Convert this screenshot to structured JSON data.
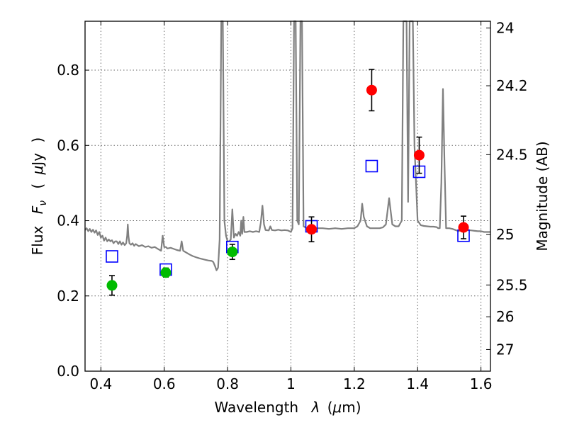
{
  "chart_data": {
    "type": "scatter",
    "xlabel_text": "Wavelength",
    "xlabel_symbol": "λ",
    "xlabel_unit_open": "(",
    "xlabel_unit_mu": "μ",
    "xlabel_unit_rest": "m)",
    "ylabel_text": "Flux",
    "ylabel_symbol": "F",
    "ylabel_sub": "ν",
    "ylabel_unit_open": "(",
    "ylabel_unit_mu": "μ",
    "ylabel_unit_rest": "Jy",
    "ylabel_unit_close": ")",
    "y2label": "Magnitude (AB)",
    "xlim": [
      0.35,
      1.63
    ],
    "ylim": [
      0.0,
      0.93
    ],
    "x_ticks": [
      {
        "value": 0.4,
        "label": "0.4"
      },
      {
        "value": 0.6,
        "label": "0.6"
      },
      {
        "value": 0.8,
        "label": "0.8"
      },
      {
        "value": 1.0,
        "label": "1"
      },
      {
        "value": 1.2,
        "label": "1.2"
      },
      {
        "value": 1.4,
        "label": "1.4"
      },
      {
        "value": 1.6,
        "label": "1.6"
      }
    ],
    "y_ticks": [
      {
        "value": 0.0,
        "label": "0.0"
      },
      {
        "value": 0.2,
        "label": "0.2"
      },
      {
        "value": 0.4,
        "label": "0.4"
      },
      {
        "value": 0.6,
        "label": "0.6"
      },
      {
        "value": 0.8,
        "label": "0.8"
      }
    ],
    "y2_ticks": [
      {
        "mag": 24,
        "label": "24"
      },
      {
        "mag": 24.2,
        "label": "24.2"
      },
      {
        "mag": 24.5,
        "label": "24.5"
      },
      {
        "mag": 25,
        "label": "25"
      },
      {
        "mag": 25.5,
        "label": "25.5"
      },
      {
        "mag": 26,
        "label": "26"
      },
      {
        "mag": 27,
        "label": "27"
      }
    ],
    "grid": true,
    "colors": {
      "template": "#808080",
      "model": "#0000ff",
      "optical": "#00bb00",
      "nir": "#ff0000",
      "errorbar": "#000000",
      "grid": "#666666"
    },
    "series": [
      {
        "name": "template-spectrum",
        "style": "line",
        "points": [
          [
            0.35,
            0.375
          ],
          [
            0.355,
            0.38
          ],
          [
            0.36,
            0.372
          ],
          [
            0.365,
            0.378
          ],
          [
            0.37,
            0.37
          ],
          [
            0.375,
            0.376
          ],
          [
            0.38,
            0.368
          ],
          [
            0.385,
            0.374
          ],
          [
            0.39,
            0.362
          ],
          [
            0.395,
            0.37
          ],
          [
            0.4,
            0.355
          ],
          [
            0.405,
            0.36
          ],
          [
            0.41,
            0.347
          ],
          [
            0.415,
            0.355
          ],
          [
            0.42,
            0.345
          ],
          [
            0.425,
            0.35
          ],
          [
            0.43,
            0.345
          ],
          [
            0.435,
            0.348
          ],
          [
            0.44,
            0.34
          ],
          [
            0.445,
            0.345
          ],
          [
            0.45,
            0.345
          ],
          [
            0.455,
            0.338
          ],
          [
            0.46,
            0.345
          ],
          [
            0.465,
            0.336
          ],
          [
            0.47,
            0.342
          ],
          [
            0.475,
            0.335
          ],
          [
            0.48,
            0.34
          ],
          [
            0.483,
            0.36
          ],
          [
            0.485,
            0.39
          ],
          [
            0.487,
            0.36
          ],
          [
            0.49,
            0.34
          ],
          [
            0.495,
            0.336
          ],
          [
            0.5,
            0.34
          ],
          [
            0.505,
            0.333
          ],
          [
            0.51,
            0.338
          ],
          [
            0.52,
            0.332
          ],
          [
            0.53,
            0.335
          ],
          [
            0.54,
            0.33
          ],
          [
            0.55,
            0.332
          ],
          [
            0.56,
            0.328
          ],
          [
            0.57,
            0.33
          ],
          [
            0.58,
            0.325
          ],
          [
            0.59,
            0.32
          ],
          [
            0.595,
            0.36
          ],
          [
            0.6,
            0.33
          ],
          [
            0.605,
            0.33
          ],
          [
            0.61,
            0.326
          ],
          [
            0.62,
            0.328
          ],
          [
            0.63,
            0.325
          ],
          [
            0.64,
            0.322
          ],
          [
            0.65,
            0.32
          ],
          [
            0.655,
            0.345
          ],
          [
            0.66,
            0.32
          ],
          [
            0.67,
            0.315
          ],
          [
            0.68,
            0.31
          ],
          [
            0.69,
            0.306
          ],
          [
            0.7,
            0.303
          ],
          [
            0.71,
            0.3
          ],
          [
            0.72,
            0.298
          ],
          [
            0.73,
            0.296
          ],
          [
            0.74,
            0.294
          ],
          [
            0.75,
            0.293
          ],
          [
            0.755,
            0.29
          ],
          [
            0.76,
            0.28
          ],
          [
            0.765,
            0.268
          ],
          [
            0.77,
            0.275
          ],
          [
            0.775,
            0.35
          ],
          [
            0.78,
            0.93
          ],
          [
            0.785,
            0.93
          ],
          [
            0.79,
            0.4
          ],
          [
            0.795,
            0.36
          ],
          [
            0.8,
            0.345
          ],
          [
            0.805,
            0.345
          ],
          [
            0.81,
            0.35
          ],
          [
            0.815,
            0.43
          ],
          [
            0.82,
            0.355
          ],
          [
            0.825,
            0.365
          ],
          [
            0.83,
            0.36
          ],
          [
            0.835,
            0.37
          ],
          [
            0.84,
            0.36
          ],
          [
            0.843,
            0.4
          ],
          [
            0.846,
            0.365
          ],
          [
            0.85,
            0.41
          ],
          [
            0.853,
            0.37
          ],
          [
            0.86,
            0.37
          ],
          [
            0.87,
            0.372
          ],
          [
            0.88,
            0.37
          ],
          [
            0.89,
            0.372
          ],
          [
            0.9,
            0.37
          ],
          [
            0.905,
            0.395
          ],
          [
            0.91,
            0.44
          ],
          [
            0.915,
            0.39
          ],
          [
            0.92,
            0.375
          ],
          [
            0.93,
            0.374
          ],
          [
            0.935,
            0.385
          ],
          [
            0.94,
            0.375
          ],
          [
            0.95,
            0.374
          ],
          [
            0.96,
            0.376
          ],
          [
            0.97,
            0.374
          ],
          [
            0.98,
            0.375
          ],
          [
            0.99,
            0.374
          ],
          [
            1.0,
            0.37
          ],
          [
            1.005,
            0.38
          ],
          [
            1.01,
            0.93
          ],
          [
            1.015,
            0.93
          ],
          [
            1.02,
            0.4
          ],
          [
            1.025,
            0.39
          ],
          [
            1.03,
            0.93
          ],
          [
            1.035,
            0.93
          ],
          [
            1.04,
            0.385
          ],
          [
            1.05,
            0.38
          ],
          [
            1.06,
            0.38
          ],
          [
            1.07,
            0.378
          ],
          [
            1.08,
            0.38
          ],
          [
            1.1,
            0.38
          ],
          [
            1.12,
            0.378
          ],
          [
            1.14,
            0.38
          ],
          [
            1.16,
            0.378
          ],
          [
            1.18,
            0.38
          ],
          [
            1.2,
            0.38
          ],
          [
            1.21,
            0.385
          ],
          [
            1.22,
            0.4
          ],
          [
            1.225,
            0.445
          ],
          [
            1.23,
            0.41
          ],
          [
            1.24,
            0.385
          ],
          [
            1.25,
            0.38
          ],
          [
            1.26,
            0.38
          ],
          [
            1.27,
            0.38
          ],
          [
            1.28,
            0.38
          ],
          [
            1.29,
            0.382
          ],
          [
            1.3,
            0.39
          ],
          [
            1.31,
            0.46
          ],
          [
            1.32,
            0.39
          ],
          [
            1.33,
            0.385
          ],
          [
            1.34,
            0.385
          ],
          [
            1.35,
            0.4
          ],
          [
            1.355,
            0.93
          ],
          [
            1.365,
            0.93
          ],
          [
            1.37,
            0.45
          ],
          [
            1.375,
            0.93
          ],
          [
            1.385,
            0.93
          ],
          [
            1.39,
            0.6
          ],
          [
            1.4,
            0.4
          ],
          [
            1.41,
            0.388
          ],
          [
            1.42,
            0.386
          ],
          [
            1.43,
            0.385
          ],
          [
            1.44,
            0.384
          ],
          [
            1.45,
            0.384
          ],
          [
            1.46,
            0.383
          ],
          [
            1.465,
            0.38
          ],
          [
            1.47,
            0.38
          ],
          [
            1.475,
            0.5
          ],
          [
            1.48,
            0.75
          ],
          [
            1.485,
            0.55
          ],
          [
            1.49,
            0.38
          ],
          [
            1.5,
            0.38
          ],
          [
            1.51,
            0.378
          ],
          [
            1.52,
            0.375
          ],
          [
            1.53,
            0.372
          ],
          [
            1.54,
            0.38
          ],
          [
            1.55,
            0.378
          ],
          [
            1.56,
            0.375
          ],
          [
            1.57,
            0.374
          ],
          [
            1.58,
            0.373
          ],
          [
            1.59,
            0.372
          ],
          [
            1.6,
            0.372
          ],
          [
            1.61,
            0.37
          ],
          [
            1.62,
            0.37
          ],
          [
            1.63,
            0.37
          ]
        ]
      },
      {
        "name": "model-photometry",
        "style": "open-square",
        "points": [
          [
            0.435,
            0.305
          ],
          [
            0.605,
            0.27
          ],
          [
            0.815,
            0.33
          ],
          [
            1.065,
            0.385
          ],
          [
            1.255,
            0.545
          ],
          [
            1.405,
            0.53
          ],
          [
            1.545,
            0.36
          ]
        ]
      },
      {
        "name": "optical-photometry",
        "style": "filled-circle",
        "points": [
          {
            "x": 0.435,
            "y": 0.228,
            "yerr": 0.026
          },
          {
            "x": 0.605,
            "y": 0.262,
            "yerr": 0.012
          },
          {
            "x": 0.815,
            "y": 0.317,
            "yerr": 0.02
          }
        ]
      },
      {
        "name": "nir-photometry",
        "style": "filled-circle",
        "points": [
          {
            "x": 1.065,
            "y": 0.377,
            "yerr": 0.033
          },
          {
            "x": 1.255,
            "y": 0.747,
            "yerr": 0.055
          },
          {
            "x": 1.405,
            "y": 0.574,
            "yerr": 0.048
          },
          {
            "x": 1.545,
            "y": 0.382,
            "yerr": 0.03
          }
        ]
      }
    ]
  }
}
